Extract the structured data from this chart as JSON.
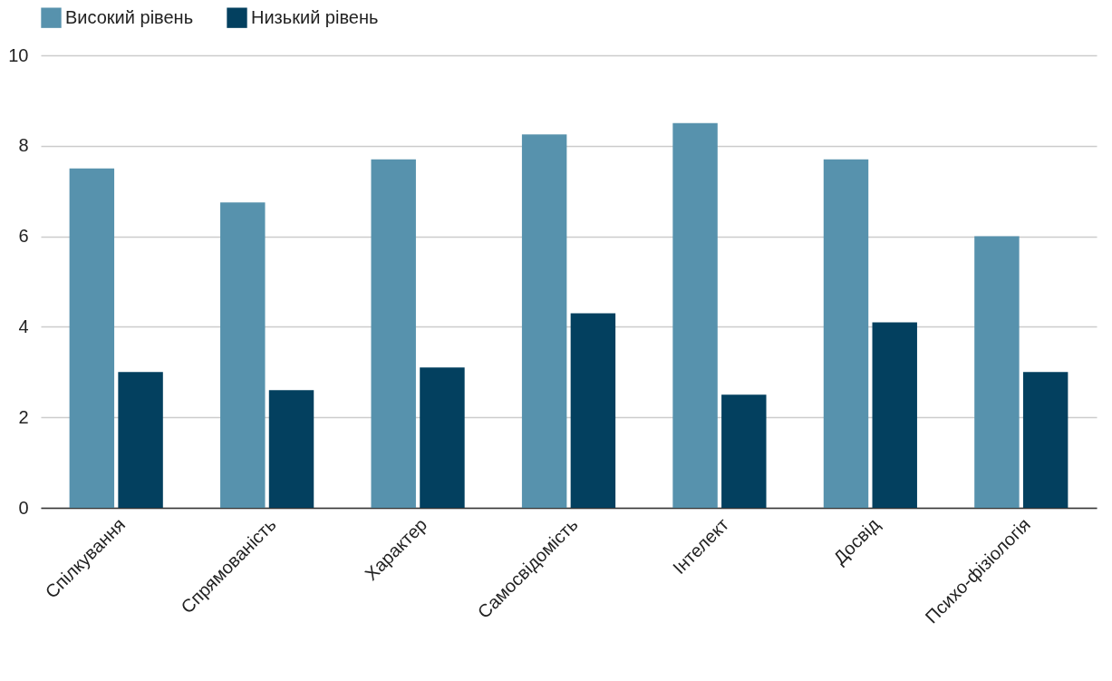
{
  "chart_data": {
    "type": "bar",
    "categories": [
      "Спілкування",
      "Спрямованість",
      "Характер",
      "Самосвідомість",
      "Інтелект",
      "Досвід",
      "Психо-фізіологія"
    ],
    "series": [
      {
        "name": "Високий рівень",
        "color": "#5792ad",
        "values": [
          7.5,
          6.75,
          7.7,
          8.25,
          8.5,
          7.7,
          6
        ]
      },
      {
        "name": "Низький рівень",
        "color": "#03405f",
        "values": [
          3,
          2.6,
          3.1,
          4.3,
          2.5,
          4.1,
          3
        ]
      }
    ],
    "ylim": [
      0,
      10
    ],
    "yticks": [
      0,
      2,
      4,
      6,
      8,
      10
    ],
    "grid": "y",
    "legend": "top"
  }
}
